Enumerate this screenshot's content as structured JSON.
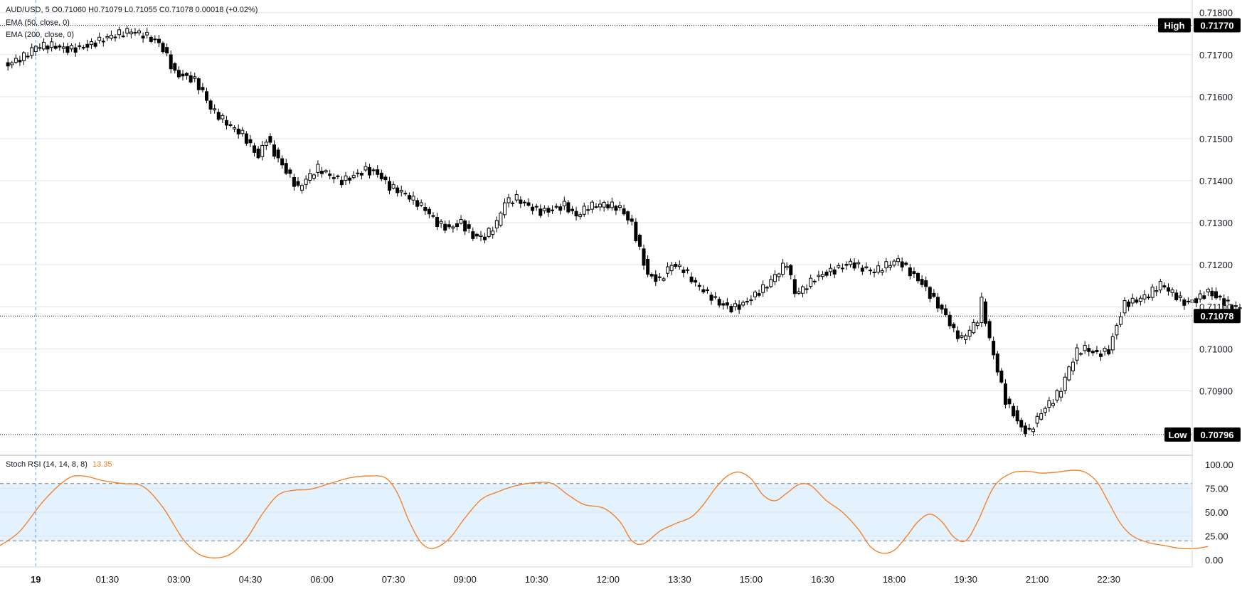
{
  "header": {
    "symbol_line": "AUD/USD, 5  O0.71060  H0.71079  L0.71055  C0.71078  0.00018 (+0.02%)",
    "ema1": "EMA (50, close, 0)",
    "ema2": "EMA (200, close, 0)",
    "stoch_label": "Stoch RSI (14, 14, 8, 8)",
    "stoch_value": "13.35"
  },
  "colors": {
    "stoch_line": "#f57c21",
    "stoch_band": "#e3f2fd",
    "candle_up": "#ffffff",
    "candle_down": "#000000",
    "tag_bg": "#000000"
  },
  "chart_data": [
    {
      "type": "candlestick",
      "title": "AUD/USD, 5",
      "ylim": [
        0.7075,
        0.7183
      ],
      "y_ticks": [
        "0.71800",
        "0.71700",
        "0.71600",
        "0.71500",
        "0.71400",
        "0.71300",
        "0.71200",
        "0.71100",
        "0.71000",
        "0.70900"
      ],
      "x_ticks": [
        "19",
        "01:30",
        "03:00",
        "04:30",
        "06:00",
        "07:30",
        "09:00",
        "10:30",
        "12:00",
        "13:30",
        "15:00",
        "16:30",
        "18:00",
        "19:30",
        "21:00",
        "22:30"
      ],
      "x_range_minutes": [
        -45,
        1455
      ],
      "markers": {
        "high": {
          "label": "High",
          "value": "0.71770"
        },
        "low": {
          "label": "Low",
          "value": "0.70796"
        },
        "last": {
          "value": "0.71078"
        }
      },
      "price_path": [
        [
          -35,
          0.71678
        ],
        [
          -25,
          0.71685
        ],
        [
          -15,
          0.71692
        ],
        [
          0,
          0.71715
        ],
        [
          20,
          0.7172
        ],
        [
          40,
          0.71715
        ],
        [
          60,
          0.71722
        ],
        [
          80,
          0.71735
        ],
        [
          100,
          0.71745
        ],
        [
          120,
          0.71752
        ],
        [
          140,
          0.71742
        ],
        [
          155,
          0.7173
        ],
        [
          165,
          0.717
        ],
        [
          175,
          0.7166
        ],
        [
          190,
          0.7165
        ],
        [
          200,
          0.7164
        ],
        [
          210,
          0.7161
        ],
        [
          220,
          0.7157
        ],
        [
          230,
          0.7155
        ],
        [
          245,
          0.71525
        ],
        [
          260,
          0.7151
        ],
        [
          270,
          0.71485
        ],
        [
          280,
          0.7146
        ],
        [
          290,
          0.71505
        ],
        [
          300,
          0.7147
        ],
        [
          310,
          0.7144
        ],
        [
          320,
          0.7141
        ],
        [
          330,
          0.7138
        ],
        [
          340,
          0.714
        ],
        [
          355,
          0.71425
        ],
        [
          370,
          0.7141
        ],
        [
          385,
          0.714
        ],
        [
          400,
          0.71415
        ],
        [
          415,
          0.7143
        ],
        [
          430,
          0.7142
        ],
        [
          445,
          0.71385
        ],
        [
          460,
          0.7137
        ],
        [
          475,
          0.7135
        ],
        [
          490,
          0.7133
        ],
        [
          505,
          0.713
        ],
        [
          520,
          0.7129
        ],
        [
          535,
          0.71305
        ],
        [
          550,
          0.7127
        ],
        [
          565,
          0.71265
        ],
        [
          580,
          0.71295
        ],
        [
          590,
          0.71345
        ],
        [
          605,
          0.71355
        ],
        [
          620,
          0.7134
        ],
        [
          635,
          0.7133
        ],
        [
          650,
          0.71335
        ],
        [
          665,
          0.71345
        ],
        [
          680,
          0.71315
        ],
        [
          695,
          0.71335
        ],
        [
          715,
          0.7134
        ],
        [
          735,
          0.71335
        ],
        [
          750,
          0.713
        ],
        [
          760,
          0.7124
        ],
        [
          770,
          0.7118
        ],
        [
          785,
          0.71165
        ],
        [
          800,
          0.712
        ],
        [
          815,
          0.71185
        ],
        [
          830,
          0.7115
        ],
        [
          845,
          0.7113
        ],
        [
          860,
          0.7111
        ],
        [
          875,
          0.711
        ],
        [
          890,
          0.7111
        ],
        [
          905,
          0.7113
        ],
        [
          920,
          0.7115
        ],
        [
          935,
          0.7118
        ],
        [
          945,
          0.712
        ],
        [
          955,
          0.7113
        ],
        [
          965,
          0.7114
        ],
        [
          980,
          0.7117
        ],
        [
          995,
          0.71185
        ],
        [
          1010,
          0.71195
        ],
        [
          1025,
          0.71205
        ],
        [
          1040,
          0.7119
        ],
        [
          1055,
          0.7118
        ],
        [
          1070,
          0.71195
        ],
        [
          1085,
          0.7121
        ],
        [
          1100,
          0.71185
        ],
        [
          1115,
          0.7116
        ],
        [
          1130,
          0.7112
        ],
        [
          1145,
          0.7108
        ],
        [
          1155,
          0.7104
        ],
        [
          1165,
          0.7102
        ],
        [
          1175,
          0.7104
        ],
        [
          1185,
          0.71065
        ],
        [
          1190,
          0.7111
        ],
        [
          1200,
          0.7102
        ],
        [
          1210,
          0.7095
        ],
        [
          1220,
          0.7088
        ],
        [
          1230,
          0.7085
        ],
        [
          1240,
          0.70815
        ],
        [
          1250,
          0.70805
        ],
        [
          1260,
          0.70835
        ],
        [
          1270,
          0.7086
        ],
        [
          1280,
          0.70875
        ],
        [
          1290,
          0.709
        ],
        [
          1300,
          0.7095
        ],
        [
          1310,
          0.7099
        ],
        [
          1320,
          0.71
        ],
        [
          1335,
          0.7099
        ],
        [
          1350,
          0.71
        ],
        [
          1360,
          0.7106
        ],
        [
          1370,
          0.7111
        ],
        [
          1385,
          0.71115
        ],
        [
          1400,
          0.71125
        ],
        [
          1415,
          0.7115
        ],
        [
          1430,
          0.7113
        ],
        [
          1445,
          0.7111
        ],
        [
          1460,
          0.7112
        ],
        [
          1475,
          0.7114
        ],
        [
          1490,
          0.7112
        ],
        [
          1505,
          0.711
        ],
        [
          1520,
          0.7109
        ],
        [
          1535,
          0.7108
        ],
        [
          1545,
          0.711
        ],
        [
          1555,
          0.71078
        ]
      ]
    },
    {
      "type": "line",
      "title": "Stoch RSI (14, 14, 8, 8)",
      "ylim": [
        0,
        100
      ],
      "y_ticks": [
        "100.00",
        "75.00",
        "50.00",
        "25.00",
        "0.00"
      ],
      "band": [
        20,
        80
      ],
      "series": [
        {
          "name": "Stoch RSI",
          "points": [
            [
              -45,
              15
            ],
            [
              -20,
              30
            ],
            [
              10,
              62
            ],
            [
              40,
              85
            ],
            [
              60,
              88
            ],
            [
              85,
              83
            ],
            [
              110,
              80
            ],
            [
              135,
              77
            ],
            [
              160,
              55
            ],
            [
              185,
              22
            ],
            [
              205,
              6
            ],
            [
              225,
              2
            ],
            [
              245,
              6
            ],
            [
              265,
              22
            ],
            [
              285,
              48
            ],
            [
              305,
              68
            ],
            [
              325,
              73
            ],
            [
              345,
              74
            ],
            [
              370,
              80
            ],
            [
              395,
              86
            ],
            [
              420,
              88
            ],
            [
              440,
              86
            ],
            [
              455,
              70
            ],
            [
              470,
              40
            ],
            [
              485,
              18
            ],
            [
              500,
              12
            ],
            [
              520,
              22
            ],
            [
              540,
              44
            ],
            [
              560,
              63
            ],
            [
              580,
              71
            ],
            [
              605,
              78
            ],
            [
              630,
              81
            ],
            [
              650,
              80
            ],
            [
              670,
              68
            ],
            [
              690,
              58
            ],
            [
              715,
              54
            ],
            [
              735,
              40
            ],
            [
              750,
              20
            ],
            [
              765,
              17
            ],
            [
              785,
              30
            ],
            [
              805,
              38
            ],
            [
              825,
              45
            ],
            [
              840,
              58
            ],
            [
              855,
              75
            ],
            [
              870,
              88
            ],
            [
              885,
              92
            ],
            [
              900,
              85
            ],
            [
              915,
              68
            ],
            [
              930,
              62
            ],
            [
              945,
              70
            ],
            [
              960,
              79
            ],
            [
              975,
              78
            ],
            [
              995,
              62
            ],
            [
              1015,
              50
            ],
            [
              1035,
              32
            ],
            [
              1050,
              14
            ],
            [
              1065,
              7
            ],
            [
              1080,
              10
            ],
            [
              1095,
              24
            ],
            [
              1110,
              40
            ],
            [
              1125,
              48
            ],
            [
              1140,
              40
            ],
            [
              1155,
              24
            ],
            [
              1170,
              20
            ],
            [
              1185,
              40
            ],
            [
              1205,
              76
            ],
            [
              1225,
              90
            ],
            [
              1245,
              93
            ],
            [
              1265,
              91
            ],
            [
              1285,
              92
            ],
            [
              1305,
              94
            ],
            [
              1320,
              92
            ],
            [
              1335,
              82
            ],
            [
              1350,
              60
            ],
            [
              1365,
              38
            ],
            [
              1380,
              25
            ],
            [
              1400,
              18
            ],
            [
              1420,
              15
            ],
            [
              1440,
              12
            ],
            [
              1460,
              12
            ],
            [
              1475,
              14
            ]
          ]
        }
      ]
    }
  ]
}
